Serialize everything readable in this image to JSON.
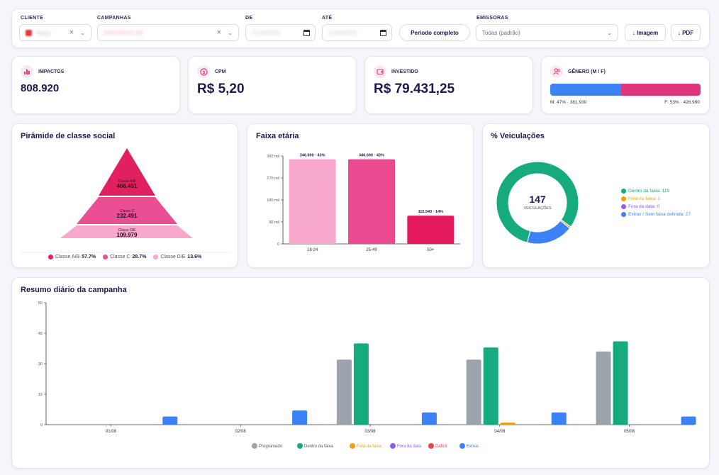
{
  "filters": {
    "cliente": {
      "label": "CLIENTE",
      "value": "Wapp"
    },
    "campanhas": {
      "label": "CAMPANHAS",
      "value": "XXXXXXXX XX"
    },
    "de": {
      "label": "DE",
      "value": "01/08/2026"
    },
    "ate": {
      "label": "ATÉ",
      "value": "31/08/2026"
    },
    "periodo_button": "Período completo",
    "emissoras": {
      "label": "EMISSORAS",
      "value": "Todas (padrão)"
    },
    "export_image": "↓ Imagem",
    "export_pdf": "↓ PDF"
  },
  "kpis": {
    "impactos": {
      "label": "IMPACTOS",
      "value": "808.920"
    },
    "cpm": {
      "label": "CPM",
      "value": "R$ 5,20"
    },
    "investido": {
      "label": "INVESTIDO",
      "value": "R$ 79.431,25"
    },
    "genero": {
      "label": "GÊNERO (M / F)",
      "male_share": 0.47,
      "m_text": "M: 47% · 381.930",
      "f_text": "F: 53% · 426.990",
      "male_color": "#3b82f6",
      "female_color": "#e0357a"
    }
  },
  "pyramid": {
    "title": "Pirâmide de classe social",
    "levels": [
      {
        "name": "Classe A/B",
        "value": "466.451",
        "color": "#e0205f"
      },
      {
        "name": "Classe C",
        "value": "232.491",
        "color": "#ea4e93"
      },
      {
        "name": "Classe D/E",
        "value": "109.979",
        "color": "#f7a8cb"
      }
    ],
    "legend": [
      {
        "label": "Classe A/B",
        "pct": "57.7%",
        "color": "#e0205f"
      },
      {
        "label": "Classe C",
        "pct": "28.7%",
        "color": "#ea4e93"
      },
      {
        "label": "Classe D/E",
        "pct": "13.6%",
        "color": "#f7a8cb"
      }
    ]
  },
  "age": {
    "title": "Faixa etária"
  },
  "veiculacoes": {
    "title": "% Veiculações",
    "total": "147",
    "total_label": "VEICULAÇÕES",
    "legend": [
      {
        "label": "Dentro da faixa: 119",
        "color": "#16ab7e"
      },
      {
        "label": "Fora da faixa: 1",
        "color": "#f59e0b"
      },
      {
        "label": "Fora da data: 0",
        "color": "#8b5cf6"
      },
      {
        "label": "Extras / Sem faixa definida: 27",
        "color": "#3b82f6"
      }
    ]
  },
  "daily": {
    "title": "Resumo diário da campanha"
  },
  "chart_data": [
    {
      "type": "bar",
      "categories": [
        "18-24",
        "25-49",
        "50+"
      ],
      "values": [
        346690,
        346690,
        115540
      ],
      "data_labels": [
        "346.690 · 43%",
        "346.690 · 43%",
        "115.540 · 14%"
      ],
      "yticks": [
        "0",
        "90 mil",
        "180 mil",
        "270 mil",
        "360 mil"
      ],
      "ylim": [
        0,
        360000
      ],
      "colors": [
        "#f9a8cd",
        "#ec4a90",
        "#e4195f"
      ]
    },
    {
      "type": "pie",
      "categories": [
        "Dentro da faixa",
        "Fora da faixa",
        "Fora da data",
        "Extras / Sem faixa definida"
      ],
      "values": [
        119,
        1,
        0,
        27
      ],
      "colors": [
        "#16ab7e",
        "#f59e0b",
        "#8b5cf6",
        "#3b82f6"
      ]
    },
    {
      "type": "bar",
      "categories": [
        "01/08",
        "02/08",
        "03/08",
        "04/08",
        "05/08"
      ],
      "yticks": [
        "0",
        "15",
        "30",
        "45",
        "60"
      ],
      "ylim": [
        0,
        60
      ],
      "grid": false,
      "legend_position": "bottom",
      "series": [
        {
          "name": "Programado",
          "color": "#9ca3af",
          "values": [
            0,
            0,
            32,
            32,
            36
          ]
        },
        {
          "name": "Dentro da faixa",
          "color": "#16ab7e",
          "values": [
            0,
            0,
            40,
            38,
            41
          ]
        },
        {
          "name": "Fora da faixa",
          "color": "#f59e0b",
          "values": [
            0,
            0,
            0,
            1,
            0
          ]
        },
        {
          "name": "Fora da data",
          "color": "#8b5cf6",
          "values": [
            0,
            0,
            0,
            0,
            0
          ]
        },
        {
          "name": "Déficit",
          "color": "#ef4444",
          "values": [
            0,
            0,
            0,
            0,
            0
          ]
        },
        {
          "name": "Extras",
          "color": "#3b82f6",
          "values": [
            4,
            7,
            6,
            6,
            4
          ]
        }
      ],
      "extras_offset": [
        4,
        7,
        6,
        6,
        4
      ]
    }
  ]
}
